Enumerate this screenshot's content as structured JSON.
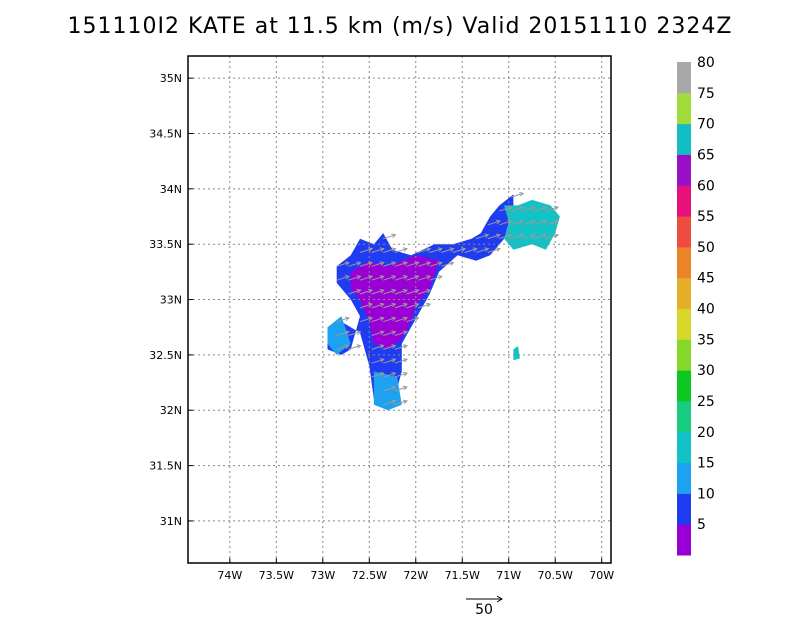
{
  "title": "151110I2 KATE at 11.5 km (m/s) Valid 20151110 2324Z",
  "chart_data": {
    "type": "heatmap",
    "title": "151110I2 KATE at 11.5 km (m/s) Valid 20151110 2324Z",
    "xlabel": "",
    "ylabel": "",
    "xlim": [
      -74.45,
      -69.9
    ],
    "ylim": [
      30.62,
      35.2
    ],
    "grid": true,
    "x_ticks": [
      {
        "value": -74,
        "label": "74W"
      },
      {
        "value": -73.5,
        "label": "73.5W"
      },
      {
        "value": -73,
        "label": "73W"
      },
      {
        "value": -72.5,
        "label": "72.5W"
      },
      {
        "value": -72,
        "label": "72W"
      },
      {
        "value": -71.5,
        "label": "71.5W"
      },
      {
        "value": -71,
        "label": "71W"
      },
      {
        "value": -70.5,
        "label": "70.5W"
      },
      {
        "value": -70,
        "label": "70W"
      }
    ],
    "y_ticks": [
      {
        "value": 31,
        "label": "31N"
      },
      {
        "value": 31.5,
        "label": "31.5N"
      },
      {
        "value": 32,
        "label": "32N"
      },
      {
        "value": 32.5,
        "label": "32.5N"
      },
      {
        "value": 33,
        "label": "33N"
      },
      {
        "value": 33.5,
        "label": "33.5N"
      },
      {
        "value": 34,
        "label": "34N"
      },
      {
        "value": 34.5,
        "label": "34.5N"
      },
      {
        "value": 35,
        "label": "35N"
      }
    ],
    "colorbar": {
      "labels": [
        "5",
        "10",
        "15",
        "20",
        "25",
        "30",
        "35",
        "40",
        "45",
        "50",
        "55",
        "60",
        "65",
        "70",
        "75",
        "80"
      ],
      "colors": [
        "#9a00d6",
        "#1f3cf2",
        "#1ca2f0",
        "#12c2c6",
        "#18cc82",
        "#0cc820",
        "#84d82a",
        "#d8d82a",
        "#e4ae28",
        "#ea8426",
        "#ee4c3e",
        "#e8107a",
        "#9a10c6",
        "#12bcc4",
        "#a0dc3c",
        "#a8a8a8"
      ]
    },
    "wind_regions": [
      {
        "speed": 10,
        "polygon": [
          [
            -72.85,
            33.3
          ],
          [
            -72.7,
            33.4
          ],
          [
            -72.6,
            33.55
          ],
          [
            -72.45,
            33.5
          ],
          [
            -72.35,
            33.6
          ],
          [
            -72.25,
            33.45
          ],
          [
            -72.05,
            33.4
          ],
          [
            -71.8,
            33.5
          ],
          [
            -71.6,
            33.5
          ],
          [
            -71.4,
            33.55
          ],
          [
            -71.3,
            33.6
          ],
          [
            -71.2,
            33.75
          ],
          [
            -71.1,
            33.85
          ],
          [
            -70.95,
            33.95
          ],
          [
            -70.95,
            33.75
          ],
          [
            -71.05,
            33.55
          ],
          [
            -71.2,
            33.4
          ],
          [
            -71.35,
            33.35
          ],
          [
            -71.55,
            33.4
          ],
          [
            -71.75,
            33.25
          ],
          [
            -71.85,
            33.05
          ],
          [
            -71.95,
            32.9
          ],
          [
            -72.05,
            32.75
          ],
          [
            -72.15,
            32.6
          ],
          [
            -72.15,
            32.35
          ],
          [
            -72.2,
            32.2
          ],
          [
            -72.3,
            32.05
          ],
          [
            -72.45,
            32.1
          ],
          [
            -72.5,
            32.4
          ],
          [
            -72.6,
            32.7
          ],
          [
            -72.8,
            32.8
          ],
          [
            -72.95,
            32.7
          ],
          [
            -72.95,
            32.55
          ],
          [
            -72.8,
            32.5
          ],
          [
            -72.7,
            32.55
          ],
          [
            -72.6,
            32.85
          ],
          [
            -72.7,
            33.0
          ],
          [
            -72.85,
            33.15
          ]
        ]
      },
      {
        "speed": 5,
        "polygon": [
          [
            -72.7,
            33.25
          ],
          [
            -72.5,
            33.35
          ],
          [
            -72.3,
            33.3
          ],
          [
            -72.0,
            33.4
          ],
          [
            -71.75,
            33.35
          ],
          [
            -71.85,
            33.1
          ],
          [
            -72.0,
            32.95
          ],
          [
            -72.05,
            32.8
          ],
          [
            -72.15,
            32.65
          ],
          [
            -72.3,
            32.55
          ],
          [
            -72.45,
            32.6
          ],
          [
            -72.5,
            32.8
          ],
          [
            -72.6,
            33.0
          ],
          [
            -72.7,
            33.1
          ]
        ]
      },
      {
        "speed": 20,
        "polygon": [
          [
            -71.05,
            33.85
          ],
          [
            -70.9,
            33.85
          ],
          [
            -70.75,
            33.9
          ],
          [
            -70.55,
            33.85
          ],
          [
            -70.45,
            33.75
          ],
          [
            -70.5,
            33.6
          ],
          [
            -70.6,
            33.45
          ],
          [
            -70.75,
            33.5
          ],
          [
            -70.95,
            33.45
          ],
          [
            -71.05,
            33.55
          ],
          [
            -71.0,
            33.7
          ]
        ]
      },
      {
        "speed": 15,
        "polygon": [
          [
            -72.45,
            32.35
          ],
          [
            -72.2,
            32.3
          ],
          [
            -72.15,
            32.05
          ],
          [
            -72.3,
            32.0
          ],
          [
            -72.45,
            32.05
          ]
        ]
      },
      {
        "speed": 15,
        "polygon": [
          [
            -72.95,
            32.75
          ],
          [
            -72.8,
            32.85
          ],
          [
            -72.7,
            32.6
          ],
          [
            -72.85,
            32.5
          ],
          [
            -72.95,
            32.6
          ]
        ]
      },
      {
        "speed": 20,
        "polygon": [
          [
            -70.95,
            32.55
          ],
          [
            -70.9,
            32.58
          ],
          [
            -70.88,
            32.47
          ],
          [
            -70.95,
            32.45
          ]
        ]
      }
    ],
    "wind_vectors": {
      "direction_deg": 60,
      "reference_speed": 50,
      "reference_label": "50"
    }
  }
}
